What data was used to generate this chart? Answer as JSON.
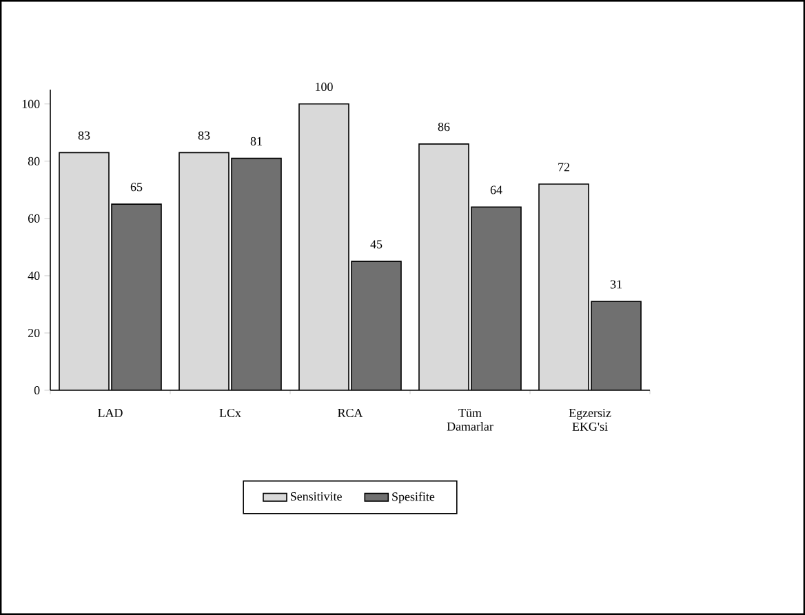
{
  "chart_data": {
    "type": "bar",
    "categories": [
      "LAD",
      "LCx",
      "RCA",
      "Tüm Damarlar",
      "Egzersiz EKG'si"
    ],
    "series": [
      {
        "name": "Sensitivite",
        "color": "#d9d9d9",
        "values": [
          83,
          83,
          100,
          86,
          72
        ]
      },
      {
        "name": "Spesifite",
        "color": "#707070",
        "values": [
          65,
          81,
          45,
          64,
          31
        ]
      }
    ],
    "ylim": [
      0,
      105
    ],
    "yticks": [
      0,
      20,
      40,
      60,
      80,
      100
    ],
    "data_labels": true,
    "legend": "bottom",
    "grid": false
  }
}
